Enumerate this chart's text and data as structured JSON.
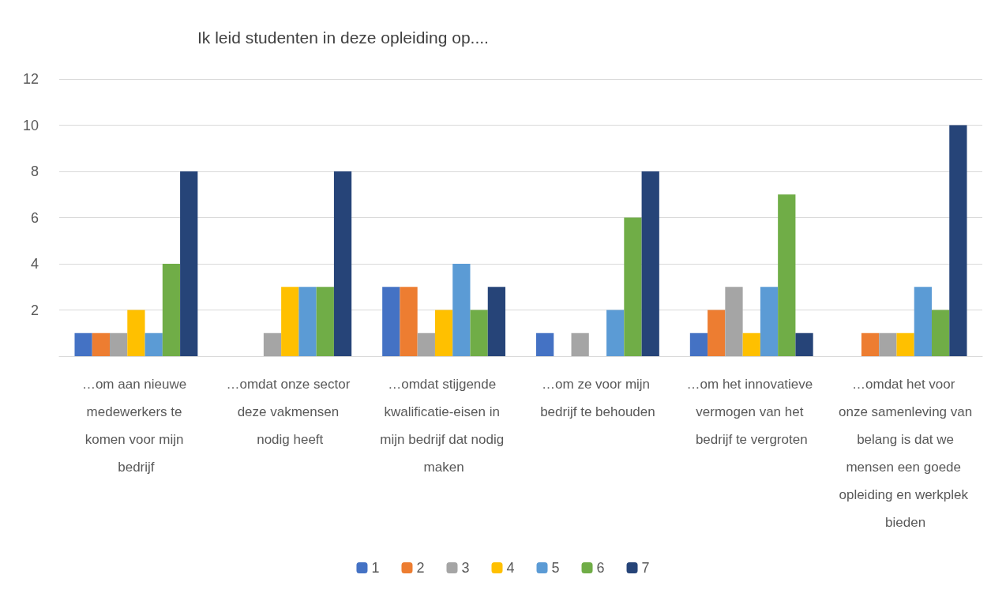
{
  "chart_data": {
    "type": "bar",
    "title": "Ik leid studenten in deze opleiding op....",
    "categories": [
      "…om aan nieuwe medewerkers te komen voor mijn bedrijf",
      "…omdat onze sector deze vakmensen nodig heeft",
      "…omdat stijgende kwalificatie-eisen in mijn bedrijf dat nodig maken",
      "…om ze voor mijn bedrijf te behouden",
      "…om het innovatieve vermogen van het bedrijf te vergroten",
      "…omdat het voor onze samenleving van belang is dat we mensen een goede opleiding en werkplek bieden"
    ],
    "series": [
      {
        "name": "1",
        "color": "#4472c4",
        "values": [
          1,
          0,
          3,
          1,
          1,
          0
        ]
      },
      {
        "name": "2",
        "color": "#ed7d31",
        "values": [
          1,
          0,
          3,
          0,
          2,
          1
        ]
      },
      {
        "name": "3",
        "color": "#a5a5a5",
        "values": [
          1,
          1,
          1,
          1,
          3,
          1
        ]
      },
      {
        "name": "4",
        "color": "#ffc000",
        "values": [
          2,
          3,
          2,
          0,
          1,
          1
        ]
      },
      {
        "name": "5",
        "color": "#5b9bd5",
        "values": [
          1,
          3,
          4,
          2,
          3,
          3
        ]
      },
      {
        "name": "6",
        "color": "#70ad47",
        "values": [
          4,
          3,
          2,
          6,
          7,
          2
        ]
      },
      {
        "name": "7",
        "color": "#264478",
        "values": [
          8,
          8,
          3,
          8,
          1,
          10
        ]
      }
    ],
    "ylim": [
      0,
      12
    ],
    "yticks": [
      {
        "value": 0,
        "label": null
      },
      2,
      4,
      6,
      8,
      10,
      12
    ],
    "grid": "y",
    "legend": "bottom"
  }
}
